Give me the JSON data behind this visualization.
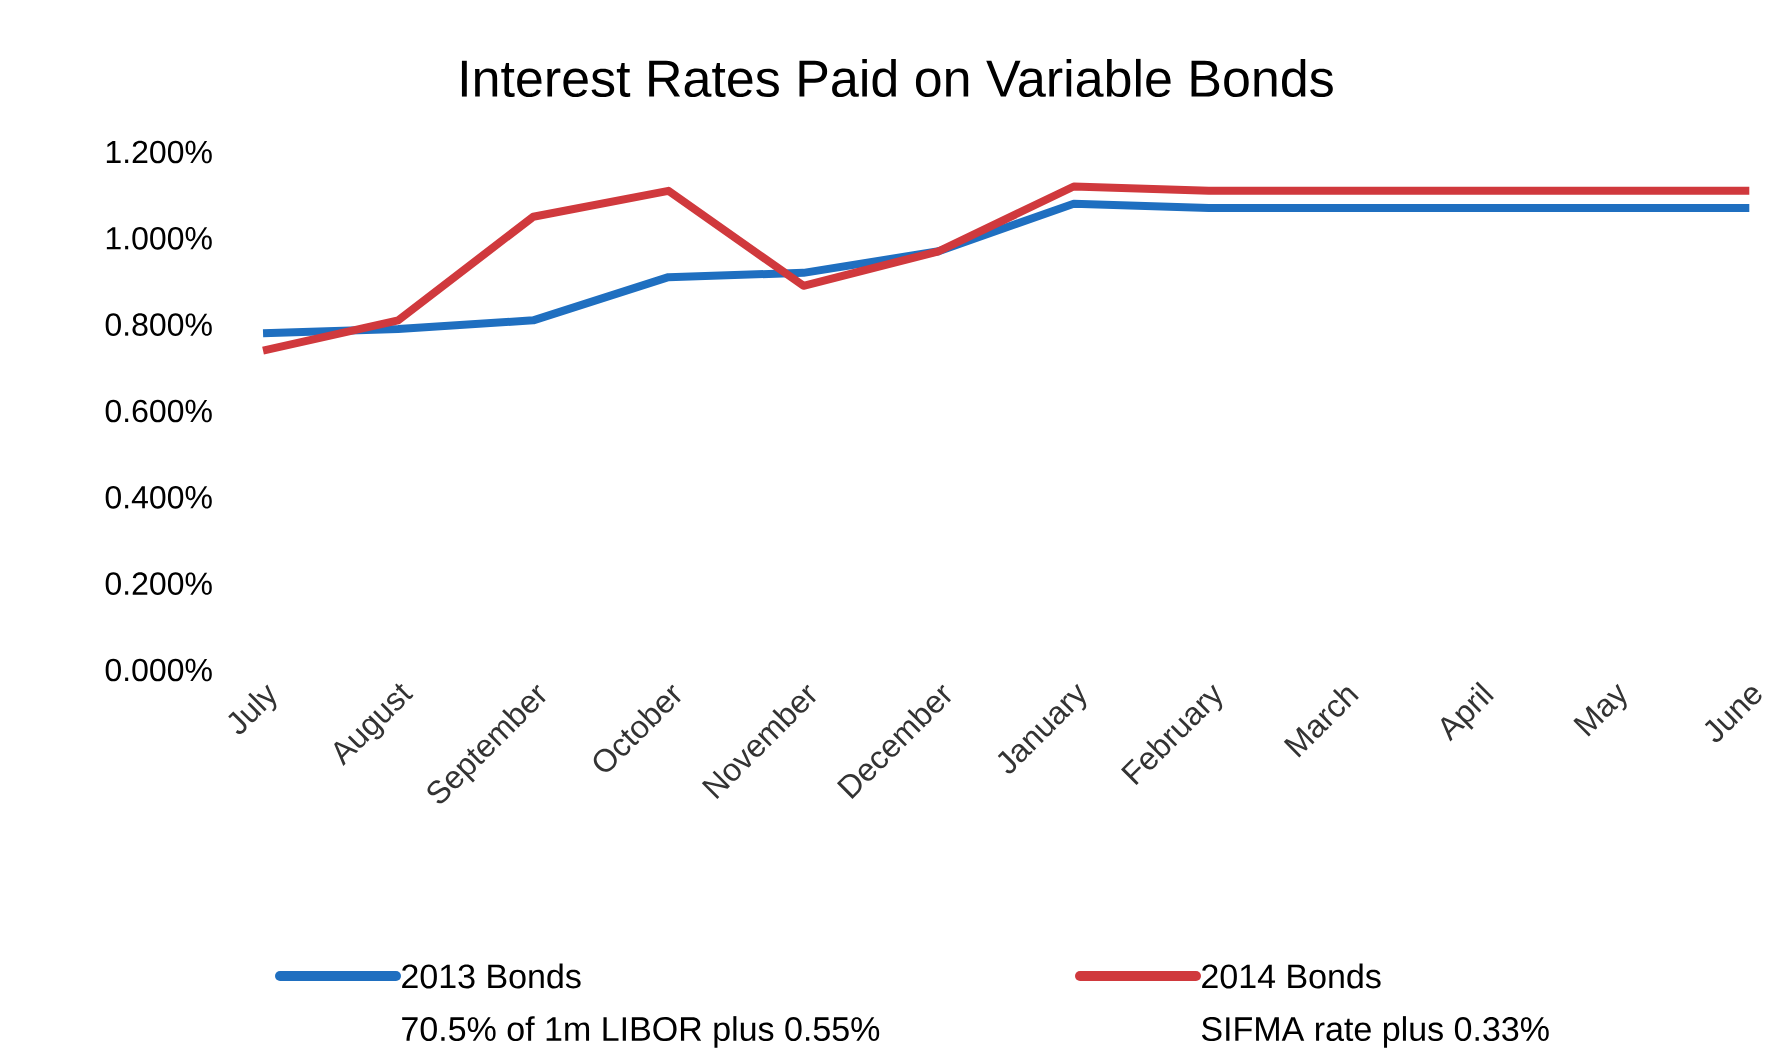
{
  "chart_data": {
    "type": "line",
    "title": "Interest Rates Paid on Variable Bonds",
    "categories": [
      "July",
      "August",
      "September",
      "October",
      "November",
      "December",
      "January",
      "February",
      "March",
      "April",
      "May",
      "June"
    ],
    "series": [
      {
        "name": "2013 Bonds",
        "color": "#1f6fc0",
        "values": [
          0.78,
          0.79,
          0.81,
          0.91,
          0.92,
          0.97,
          1.08,
          1.07,
          1.07,
          1.07,
          1.07,
          1.07
        ]
      },
      {
        "name": "2014 Bonds",
        "color": "#d0393d",
        "values": [
          0.74,
          0.81,
          1.05,
          1.11,
          0.89,
          0.97,
          1.12,
          1.11,
          1.11,
          1.11,
          1.11,
          1.11
        ]
      }
    ],
    "annotations": [
      "70.5% of 1m LIBOR plus 0.55%",
      "SIFMA rate plus 0.33%"
    ],
    "ylim": [
      0,
      1.2
    ],
    "yticks": [
      {
        "value": 0,
        "label": "0.000%"
      },
      {
        "value": 0.2,
        "label": "0.200%"
      },
      {
        "value": 0.4,
        "label": "0.400%"
      },
      {
        "value": 0.6,
        "label": "0.600%"
      },
      {
        "value": 0.8,
        "label": "0.800%"
      },
      {
        "value": 1.0,
        "label": "1.000%"
      },
      {
        "value": 1.2,
        "label": "1.200%"
      }
    ],
    "legend": "bottom",
    "grid": false,
    "marker": "none",
    "line_style": "solid"
  }
}
